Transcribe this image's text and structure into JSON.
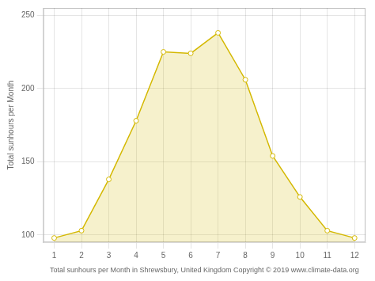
{
  "chart_data": {
    "type": "area",
    "x": [
      1,
      2,
      3,
      4,
      5,
      6,
      7,
      8,
      9,
      10,
      11,
      12
    ],
    "values": [
      98,
      103,
      138,
      178,
      225,
      224,
      238,
      206,
      154,
      126,
      103,
      98
    ],
    "color": "#D4B800",
    "marker": "circle",
    "xlabel": "Total sunhours per Month in Shrewsbury, United Kingdom Copyright © 2019 www.climate-data.org",
    "ylabel": "Total sunhours per Month",
    "xlim": [
      0.6,
      12.4
    ],
    "xticks": [
      1,
      2,
      3,
      4,
      5,
      6,
      7,
      8,
      9,
      10,
      11,
      12
    ],
    "ylim": [
      95,
      255
    ],
    "yticks": [
      100,
      150,
      200,
      250
    ],
    "grid": true
  }
}
